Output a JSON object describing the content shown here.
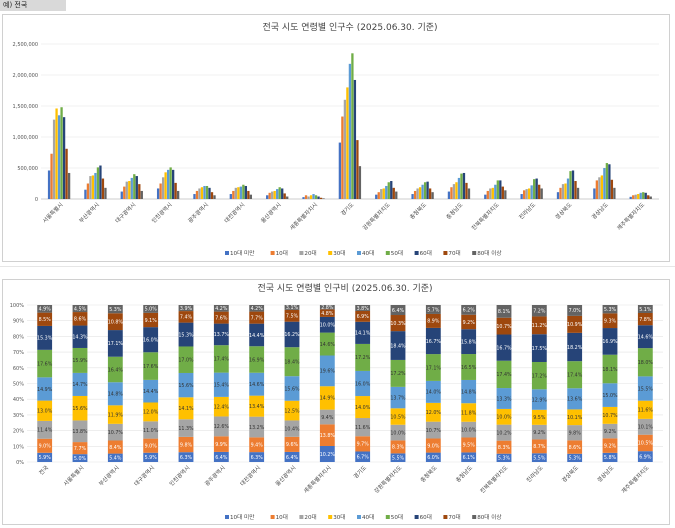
{
  "sheet": {
    "cell_label": "예) 전국"
  },
  "colors": [
    "#4472c4",
    "#ed7d31",
    "#a5a5a5",
    "#ffc000",
    "#5b9bd5",
    "#70ad47",
    "#264478",
    "#9e480e",
    "#636363"
  ],
  "chart_data": [
    {
      "type": "bar",
      "title": "전국 시도 연령별 인구수 (2025.06.30. 기준)",
      "ylim": [
        0,
        2500000
      ],
      "yticks": [
        "0",
        "500,000",
        "1,000,000",
        "1,500,000",
        "2,000,000",
        "2,500,000"
      ],
      "legend_position": "bottom",
      "categories": [
        "서울특별시",
        "부산광역시",
        "대구광역시",
        "인천광역시",
        "광주광역시",
        "대전광역시",
        "울산광역시",
        "세종특별자치시",
        "경기도",
        "강원특별자치도",
        "충청북도",
        "충청남도",
        "전북특별자치도",
        "전라남도",
        "경상북도",
        "경상남도",
        "제주특별자치도"
      ],
      "series": [
        {
          "name": "10대 미만",
          "values": [
            460000,
            150000,
            120000,
            170000,
            80000,
            80000,
            60000,
            30000,
            910000,
            70000,
            80000,
            120000,
            70000,
            80000,
            110000,
            170000,
            35000
          ]
        },
        {
          "name": "10대",
          "values": [
            730000,
            250000,
            200000,
            250000,
            130000,
            130000,
            100000,
            60000,
            1330000,
            110000,
            130000,
            190000,
            130000,
            140000,
            180000,
            300000,
            60000
          ]
        },
        {
          "name": "20대",
          "values": [
            1280000,
            370000,
            280000,
            350000,
            170000,
            180000,
            120000,
            40000,
            1600000,
            160000,
            170000,
            240000,
            170000,
            160000,
            240000,
            350000,
            70000
          ]
        },
        {
          "name": "30대",
          "values": [
            1460000,
            380000,
            290000,
            430000,
            190000,
            190000,
            130000,
            60000,
            1800000,
            170000,
            190000,
            270000,
            180000,
            170000,
            250000,
            380000,
            80000
          ]
        },
        {
          "name": "40대",
          "values": [
            1350000,
            420000,
            340000,
            470000,
            210000,
            200000,
            160000,
            80000,
            2180000,
            210000,
            230000,
            340000,
            230000,
            220000,
            330000,
            500000,
            100000
          ]
        },
        {
          "name": "50대",
          "values": [
            1480000,
            510000,
            400000,
            510000,
            210000,
            230000,
            190000,
            60000,
            2350000,
            270000,
            270000,
            410000,
            300000,
            320000,
            450000,
            580000,
            110000
          ]
        },
        {
          "name": "60대",
          "values": [
            1320000,
            540000,
            370000,
            470000,
            180000,
            210000,
            170000,
            40000,
            1920000,
            290000,
            280000,
            420000,
            300000,
            330000,
            460000,
            560000,
            100000
          ]
        },
        {
          "name": "70대",
          "values": [
            810000,
            330000,
            240000,
            260000,
            110000,
            130000,
            90000,
            20000,
            950000,
            180000,
            170000,
            260000,
            200000,
            230000,
            290000,
            310000,
            60000
          ]
        },
        {
          "name": "80대 이상",
          "values": [
            420000,
            180000,
            130000,
            130000,
            60000,
            70000,
            40000,
            10000,
            530000,
            120000,
            110000,
            170000,
            140000,
            170000,
            180000,
            180000,
            40000
          ]
        }
      ]
    },
    {
      "type": "bar",
      "stacked": true,
      "title": "전국 시도 연령별 인구비 (2025.06.30. 기준)",
      "ylim": [
        0,
        100
      ],
      "yticks": [
        "0%",
        "10%",
        "20%",
        "30%",
        "40%",
        "50%",
        "60%",
        "70%",
        "80%",
        "90%",
        "100%"
      ],
      "legend_position": "bottom",
      "categories": [
        "전국",
        "서울특별시",
        "부산광역시",
        "대구광역시",
        "인천광역시",
        "광주광역시",
        "대전광역시",
        "울산광역시",
        "세종특별자치시",
        "경기도",
        "강원특별자치도",
        "충청북도",
        "충청남도",
        "전북특별자치도",
        "전라남도",
        "경상북도",
        "경상남도",
        "제주특별자치도"
      ],
      "series": [
        {
          "name": "10대 미만",
          "values": [
            5.9,
            5.0,
            5.4,
            5.9,
            6.3,
            6.4,
            6.3,
            6.4,
            10.2,
            6.7,
            5.5,
            6.0,
            6.1,
            5.3,
            5.5,
            5.3,
            5.8,
            6.9
          ]
        },
        {
          "name": "10대",
          "values": [
            9.0,
            7.7,
            8.4,
            9.0,
            9.8,
            9.9,
            9.4,
            9.6,
            13.8,
            9.7,
            8.3,
            9.0,
            9.5,
            8.3,
            8.7,
            8.6,
            9.2,
            10.5
          ]
        },
        {
          "name": "20대",
          "values": [
            11.4,
            13.8,
            10.7,
            11.0,
            11.3,
            12.6,
            13.2,
            10.4,
            9.4,
            11.6,
            10.0,
            10.7,
            10.0,
            10.2,
            9.2,
            9.8,
            9.2,
            10.1
          ]
        },
        {
          "name": "30대",
          "values": [
            13.0,
            15.6,
            11.9,
            12.0,
            14.1,
            12.4,
            13.4,
            12.5,
            14.9,
            14.0,
            10.5,
            12.0,
            11.8,
            10.0,
            9.5,
            10.1,
            10.7,
            11.6
          ]
        },
        {
          "name": "40대",
          "values": [
            14.9,
            14.7,
            14.8,
            14.4,
            15.6,
            15.4,
            14.6,
            15.6,
            19.6,
            16.0,
            13.7,
            14.0,
            14.8,
            13.3,
            12.9,
            13.6,
            15.0,
            15.5
          ]
        },
        {
          "name": "50대",
          "values": [
            17.6,
            15.9,
            16.4,
            17.6,
            17.0,
            17.4,
            16.9,
            18.4,
            14.6,
            17.2,
            17.2,
            17.1,
            16.5,
            17.4,
            17.2,
            17.4,
            18.1,
            18.0
          ]
        },
        {
          "name": "60대",
          "values": [
            15.3,
            14.3,
            17.1,
            16.0,
            15.3,
            13.7,
            14.4,
            16.2,
            10.0,
            14.1,
            18.4,
            16.7,
            15.8,
            16.7,
            17.5,
            18.2,
            16.9,
            14.6
          ]
        },
        {
          "name": "70대",
          "values": [
            8.5,
            8.6,
            10.8,
            9.1,
            7.4,
            7.6,
            7.7,
            7.5,
            4.8,
            6.9,
            10.3,
            8.9,
            9.2,
            10.7,
            11.2,
            10.9,
            9.3,
            7.8
          ]
        },
        {
          "name": "80대 이상",
          "values": [
            4.9,
            4.5,
            5.3,
            5.0,
            3.9,
            4.2,
            4.2,
            3.1,
            2.8,
            3.8,
            6.4,
            5.7,
            6.2,
            8.1,
            7.2,
            7.0,
            5.3,
            5.1
          ]
        }
      ]
    }
  ]
}
